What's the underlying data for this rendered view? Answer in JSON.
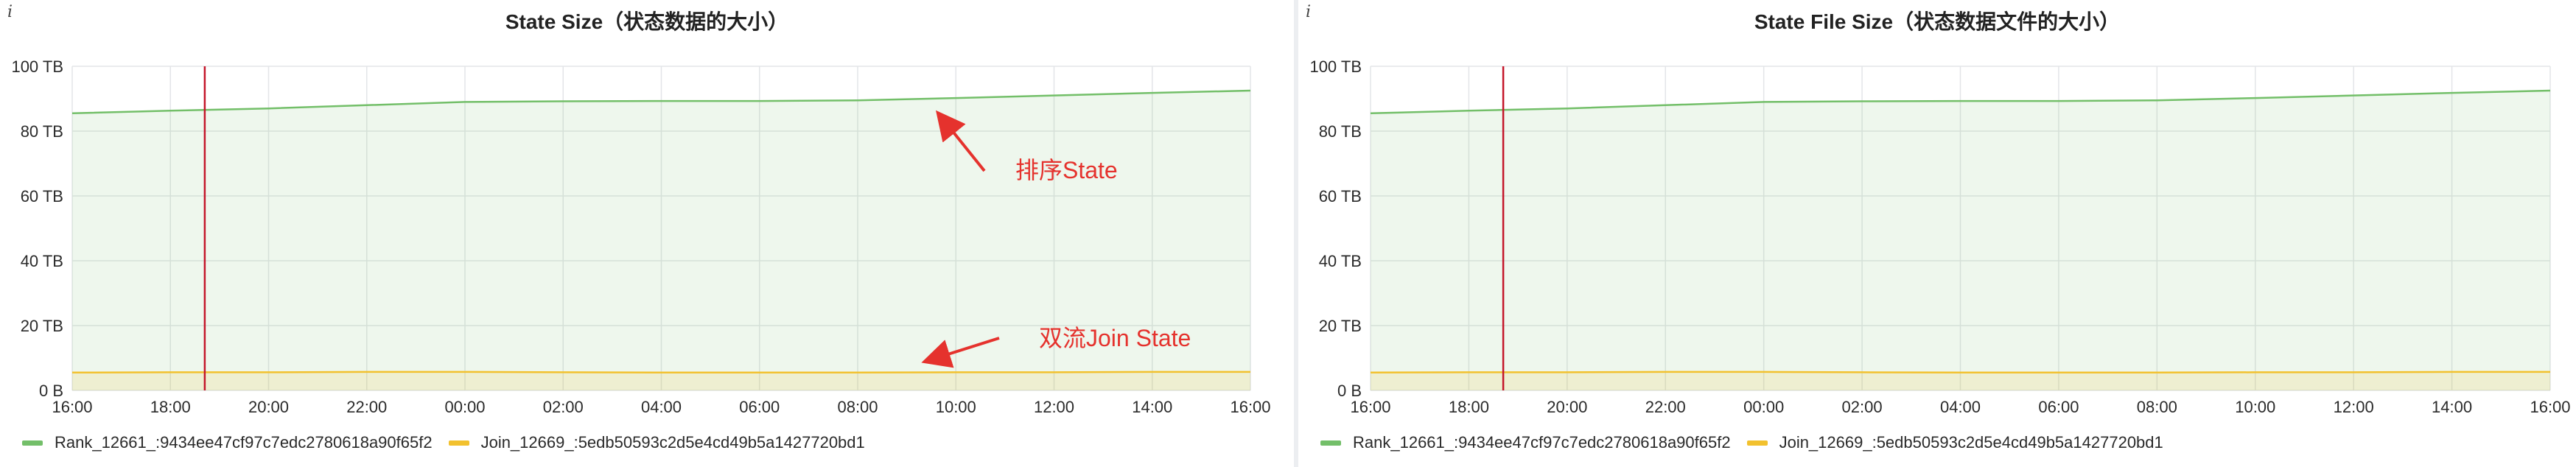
{
  "info_glyph": "i",
  "panels": [
    {
      "title": "State Size（状态数据的大小）"
    },
    {
      "title": "State File Size（状态数据文件的大小）"
    }
  ],
  "annotations": {
    "sort_state": "排序State",
    "join_state": "双流Join State"
  },
  "colors": {
    "rank_series": "#73bf69",
    "join_series": "#f2c12e",
    "marker_line": "#c4162a",
    "annotation": "#e5322d"
  },
  "chart_data": [
    {
      "type": "area",
      "title": "State Size（状态数据的大小）",
      "x": [
        "16:00",
        "18:00",
        "20:00",
        "22:00",
        "00:00",
        "02:00",
        "04:00",
        "06:00",
        "08:00",
        "10:00",
        "12:00",
        "14:00",
        "16:00"
      ],
      "y_ticks": [
        "0 B",
        "20 TB",
        "40 TB",
        "60 TB",
        "80 TB",
        "100 TB"
      ],
      "ylim": [
        0,
        100
      ],
      "y_unit": "TB",
      "grid": true,
      "legend_position": "bottom-left",
      "marker_x_hour": 2.7,
      "series": [
        {
          "name": "Rank_12661_:9434ee47cf97c7edc2780618a90f65f2",
          "values": [
            85.5,
            86.3,
            87.0,
            88.0,
            89.0,
            89.2,
            89.3,
            89.3,
            89.5,
            90.2,
            91.0,
            91.8,
            92.5
          ]
        },
        {
          "name": "Join_12669_:5edb50593c2d5e4cd49b5a1427720bd1",
          "values": [
            5.5,
            5.6,
            5.6,
            5.7,
            5.7,
            5.6,
            5.5,
            5.5,
            5.5,
            5.6,
            5.6,
            5.7,
            5.7
          ]
        }
      ]
    },
    {
      "type": "area",
      "title": "State File Size（状态数据文件的大小）",
      "x": [
        "16:00",
        "18:00",
        "20:00",
        "22:00",
        "00:00",
        "02:00",
        "04:00",
        "06:00",
        "08:00",
        "10:00",
        "12:00",
        "14:00",
        "16:00"
      ],
      "y_ticks": [
        "0 B",
        "20 TB",
        "40 TB",
        "60 TB",
        "80 TB",
        "100 TB"
      ],
      "ylim": [
        0,
        100
      ],
      "y_unit": "TB",
      "grid": true,
      "legend_position": "bottom-left",
      "marker_x_hour": 2.7,
      "series": [
        {
          "name": "Rank_12661_:9434ee47cf97c7edc2780618a90f65f2",
          "values": [
            85.5,
            86.3,
            87.0,
            88.0,
            89.0,
            89.2,
            89.3,
            89.3,
            89.5,
            90.2,
            91.0,
            91.8,
            92.5
          ]
        },
        {
          "name": "Join_12669_:5edb50593c2d5e4cd49b5a1427720bd1",
          "values": [
            5.5,
            5.6,
            5.6,
            5.7,
            5.7,
            5.6,
            5.5,
            5.5,
            5.5,
            5.6,
            5.6,
            5.7,
            5.7
          ]
        }
      ]
    }
  ]
}
